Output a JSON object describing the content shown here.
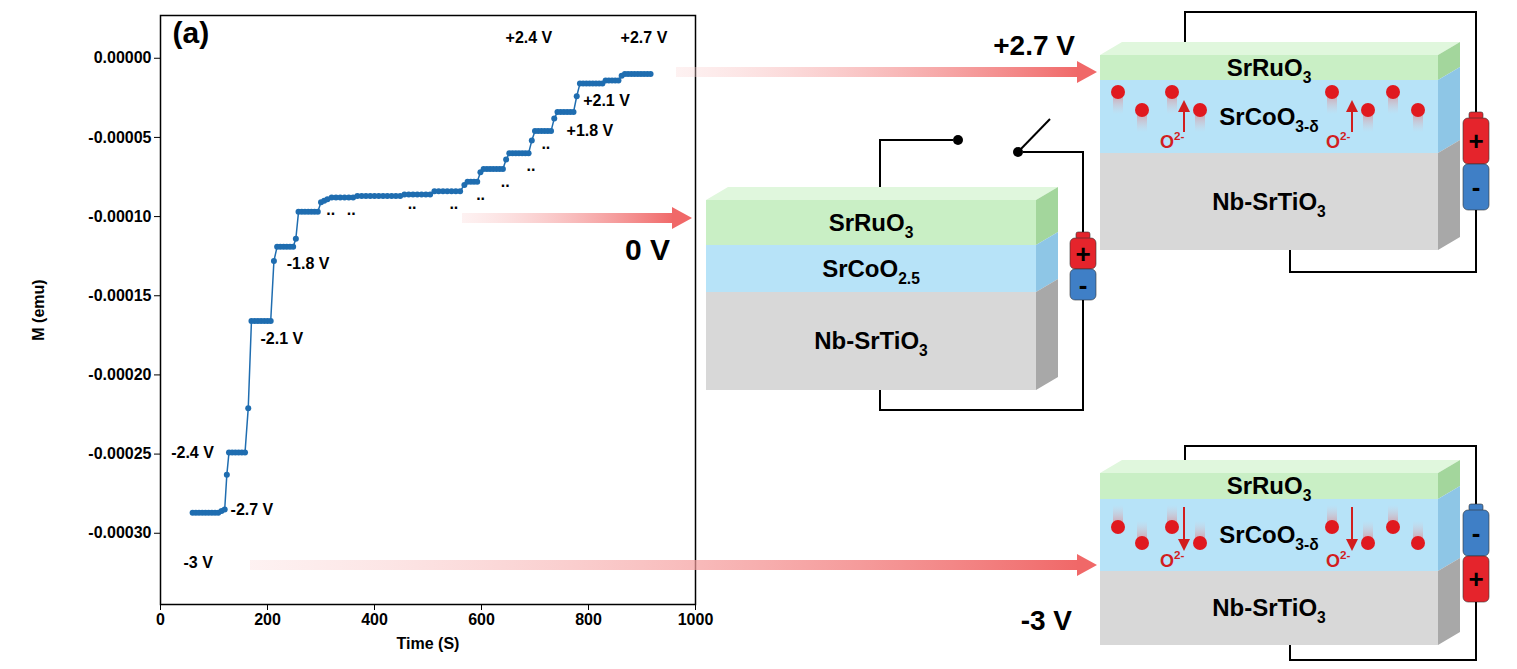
{
  "chart_data": {
    "type": "line",
    "panel_label": "(a)",
    "x_label": "Time (S)",
    "y_label": "M (emu)",
    "color": "#1f6db0",
    "marker": "circle",
    "line_style": "solid",
    "grid": false,
    "xlim": [
      0,
      1000
    ],
    "xticks": [
      0,
      200,
      400,
      600,
      800,
      1000
    ],
    "ylim": [
      -0.000345,
      2.7e-05
    ],
    "yticks": [
      {
        "value": 0,
        "label": "0.00000"
      },
      {
        "value": -5e-05,
        "label": "-0.00005"
      },
      {
        "value": -0.0001,
        "label": "-0.00010"
      },
      {
        "value": -0.00015,
        "label": "-0.00015"
      },
      {
        "value": -0.0002,
        "label": "-0.00020"
      },
      {
        "value": -0.00025,
        "label": "-0.00025"
      },
      {
        "value": -0.0003,
        "label": "-0.00030"
      }
    ],
    "x": [
      60,
      66,
      72,
      78,
      84,
      90,
      96,
      102,
      108,
      114,
      120,
      124,
      128,
      134,
      140,
      146,
      152,
      158,
      164,
      170,
      176,
      182,
      188,
      194,
      200,
      206,
      212,
      218,
      224,
      230,
      236,
      242,
      248,
      253,
      258,
      264,
      270,
      276,
      282,
      288,
      294,
      300,
      306,
      312,
      320,
      328,
      336,
      344,
      352,
      360,
      368,
      376,
      384,
      392,
      400,
      408,
      416,
      424,
      432,
      440,
      448,
      456,
      464,
      472,
      480,
      488,
      496,
      504,
      512,
      520,
      528,
      536,
      544,
      552,
      560,
      568,
      574,
      580,
      586,
      592,
      598,
      604,
      610,
      616,
      622,
      628,
      634,
      640,
      646,
      652,
      658,
      664,
      670,
      676,
      682,
      688,
      694,
      700,
      706,
      712,
      718,
      724,
      730,
      736,
      742,
      748,
      754,
      760,
      766,
      772,
      778,
      784,
      790,
      796,
      802,
      808,
      814,
      820,
      826,
      832,
      838,
      844,
      850,
      856,
      862,
      868,
      874,
      880,
      886,
      892,
      898,
      904,
      910,
      916
    ],
    "values": [
      -0.000287,
      -0.000287,
      -0.000287,
      -0.000287,
      -0.000287,
      -0.000287,
      -0.000287,
      -0.000287,
      -0.000287,
      -0.000286,
      -0.000285,
      -0.000263,
      -0.000249,
      -0.000249,
      -0.000249,
      -0.000249,
      -0.000249,
      -0.000249,
      -0.000221,
      -0.000166,
      -0.000166,
      -0.000166,
      -0.000166,
      -0.000166,
      -0.000166,
      -0.000166,
      -0.000128,
      -0.000119,
      -0.000119,
      -0.000119,
      -0.000119,
      -0.000119,
      -0.000119,
      -0.000114,
      -9.7e-05,
      -9.7e-05,
      -9.7e-05,
      -9.7e-05,
      -9.7e-05,
      -9.7e-05,
      -9.7e-05,
      -9.1e-05,
      -9e-05,
      -8.9e-05,
      -8.8e-05,
      -8.8e-05,
      -8.8e-05,
      -8.8e-05,
      -8.8e-05,
      -8.8e-05,
      -8.7e-05,
      -8.7e-05,
      -8.7e-05,
      -8.7e-05,
      -8.7e-05,
      -8.7e-05,
      -8.7e-05,
      -8.7e-05,
      -8.7e-05,
      -8.7e-05,
      -8.7e-05,
      -8.6e-05,
      -8.6e-05,
      -8.6e-05,
      -8.6e-05,
      -8.6e-05,
      -8.6e-05,
      -8.6e-05,
      -8.4e-05,
      -8.4e-05,
      -8.4e-05,
      -8.4e-05,
      -8.4e-05,
      -8.4e-05,
      -8.4e-05,
      -8e-05,
      -7.8e-05,
      -7.8e-05,
      -7.8e-05,
      -7.8e-05,
      -7.2e-05,
      -7e-05,
      -7e-05,
      -7e-05,
      -7e-05,
      -7e-05,
      -7e-05,
      -7e-05,
      -6.4e-05,
      -6e-05,
      -6e-05,
      -6e-05,
      -6e-05,
      -6e-05,
      -6e-05,
      -6e-05,
      -5.2e-05,
      -4.6e-05,
      -4.6e-05,
      -4.6e-05,
      -4.6e-05,
      -4.6e-05,
      -4.6e-05,
      -3.8e-05,
      -3.4e-05,
      -3.4e-05,
      -3.4e-05,
      -3.4e-05,
      -3.4e-05,
      -3.4e-05,
      -2.4e-05,
      -1.6e-05,
      -1.6e-05,
      -1.6e-05,
      -1.6e-05,
      -1.6e-05,
      -1.6e-05,
      -1.6e-05,
      -1.6e-05,
      -1.4e-05,
      -1.4e-05,
      -1.4e-05,
      -1.4e-05,
      -1.4e-05,
      -1.1e-05,
      -1e-05,
      -1e-05,
      -1e-05,
      -1e-05,
      -1e-05,
      -1e-05,
      -1e-05,
      -1e-05,
      -1e-05
    ],
    "annotations": [
      {
        "text": "-3 V",
        "x": 43,
        "y": -0.000319
      },
      {
        "text": "-2.7 V",
        "x": 131,
        "y": -0.000285
      },
      {
        "text": "-2.4 V",
        "x": 20,
        "y": -0.000249
      },
      {
        "text": "-2.1 V",
        "x": 187,
        "y": -0.000177
      },
      {
        "text": "-1.8 V",
        "x": 236,
        "y": -0.00013
      },
      {
        "text": "+1.8 V",
        "x": 759,
        "y": -4.6e-05
      },
      {
        "text": "+2.1 V",
        "x": 790,
        "y": -2.7e-05
      },
      {
        "text": "+2.4 V",
        "x": 645,
        "y": 1.3e-05
      },
      {
        "text": "+2.7 V",
        "x": 860,
        "y": 1.3e-05
      },
      {
        "text": "..",
        "x": 310,
        "y": -9.6e-05
      },
      {
        "text": "..",
        "x": 348,
        "y": -9.6e-05
      },
      {
        "text": "..",
        "x": 462,
        "y": -9.2e-05
      },
      {
        "text": "..",
        "x": 540,
        "y": -9.2e-05
      },
      {
        "text": "..",
        "x": 590,
        "y": -8.6e-05
      },
      {
        "text": "..",
        "x": 636,
        "y": -7.8e-05
      },
      {
        "text": "..",
        "x": 684,
        "y": -6.8e-05
      },
      {
        "text": "..",
        "x": 712,
        "y": -5.4e-05
      }
    ]
  },
  "diagram": {
    "stacks": [
      {
        "voltage": "0 V",
        "layers": [
          {
            "base": "SrRuO",
            "sub": "3"
          },
          {
            "base": "SrCoO",
            "sub": "2.5"
          },
          {
            "base": "Nb-SrTiO",
            "sub": "3"
          }
        ],
        "battery": [
          "+",
          "-"
        ]
      },
      {
        "voltage": "+2.7 V",
        "layers": [
          {
            "base": "SrRuO",
            "sub": "3"
          },
          {
            "base": "SrCoO",
            "sub": "3-δ"
          },
          {
            "base": "Nb-SrTiO",
            "sub": "3"
          }
        ],
        "ion": {
          "base": "O",
          "sup": "2-"
        },
        "ion_direction": "up",
        "battery": [
          "+",
          "-"
        ]
      },
      {
        "voltage": "-3 V",
        "layers": [
          {
            "base": "SrRuO",
            "sub": "3"
          },
          {
            "base": "SrCoO",
            "sub": "3-δ"
          },
          {
            "base": "Nb-SrTiO",
            "sub": "3"
          }
        ],
        "ion": {
          "base": "O",
          "sup": "2-"
        },
        "ion_direction": "down",
        "battery": [
          "-",
          "+"
        ]
      }
    ]
  }
}
